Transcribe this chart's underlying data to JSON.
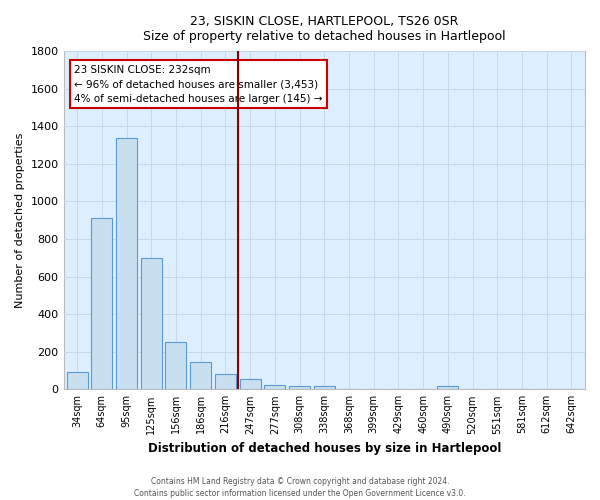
{
  "title_line1": "23, SISKIN CLOSE, HARTLEPOOL, TS26 0SR",
  "title_line2": "Size of property relative to detached houses in Hartlepool",
  "xlabel": "Distribution of detached houses by size in Hartlepool",
  "ylabel": "Number of detached properties",
  "bar_labels": [
    "34sqm",
    "64sqm",
    "95sqm",
    "125sqm",
    "156sqm",
    "186sqm",
    "216sqm",
    "247sqm",
    "277sqm",
    "308sqm",
    "338sqm",
    "368sqm",
    "399sqm",
    "429sqm",
    "460sqm",
    "490sqm",
    "520sqm",
    "551sqm",
    "581sqm",
    "612sqm",
    "642sqm"
  ],
  "bar_values": [
    90,
    910,
    1340,
    700,
    250,
    145,
    80,
    55,
    25,
    20,
    15,
    0,
    0,
    0,
    0,
    15,
    0,
    0,
    0,
    0,
    0
  ],
  "bar_color": "#c8dff0",
  "bar_edge_color": "#5b9bd5",
  "plot_bg_color": "#ddeeff",
  "ylim": [
    0,
    1800
  ],
  "yticks": [
    0,
    200,
    400,
    600,
    800,
    1000,
    1200,
    1400,
    1600,
    1800
  ],
  "vline_x": 6.5,
  "vline_color": "#8b0000",
  "annotation_title": "23 SISKIN CLOSE: 232sqm",
  "annotation_line1": "← 96% of detached houses are smaller (3,453)",
  "annotation_line2": "4% of semi-detached houses are larger (145) →",
  "footer_line1": "Contains HM Land Registry data © Crown copyright and database right 2024.",
  "footer_line2": "Contains public sector information licensed under the Open Government Licence v3.0.",
  "background_color": "#ffffff",
  "grid_color": "#c8d8e8"
}
